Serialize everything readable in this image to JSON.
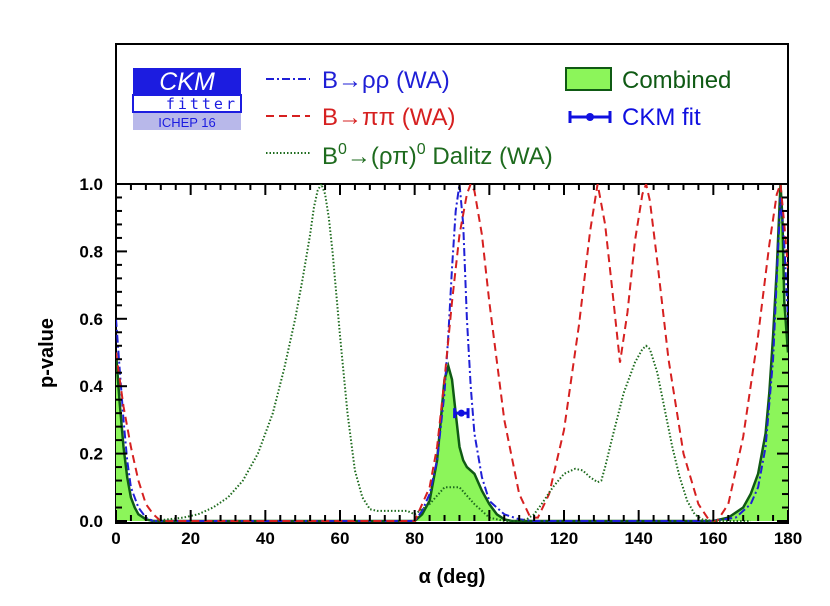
{
  "colors": {
    "rhorho": "#1f1fd6",
    "pipi": "#d62020",
    "dalitz": "#1e6b1e",
    "combined_fill": "#8cf55a",
    "combined_line": "#0f5a14",
    "ckm_fit": "#1010e0",
    "logo_blue": "#1c1ce0",
    "logo_light": "#b8b8ea"
  },
  "logo": {
    "line1": "CKM",
    "line2": "fitter",
    "badge": "ICHEP 16"
  },
  "legend": {
    "rhorho": "B→ρρ (WA)",
    "pipi": "B→ππ (WA)",
    "dalitz_a": "B",
    "dalitz_sup1": "0",
    "dalitz_b": "→(ρπ)",
    "dalitz_sup2": "0",
    "dalitz_c": " Dalitz (WA)",
    "combined": "Combined",
    "ckmfit": "CKM fit"
  },
  "chart_data": {
    "type": "line",
    "xlabel": "α  (deg)",
    "ylabel": "p-value",
    "xlim": [
      0,
      180
    ],
    "ylim": [
      0,
      1
    ],
    "xticks": [
      "0",
      "20",
      "40",
      "60",
      "80",
      "100",
      "120",
      "140",
      "160",
      "180"
    ],
    "yticks": [
      "0.0",
      "0.2",
      "0.4",
      "0.6",
      "0.8",
      "1.0"
    ],
    "series": [
      {
        "name": "B→ρρ (WA)",
        "key": "rhorho",
        "style": "dashdot",
        "x": [
          0,
          1,
          2,
          3,
          4,
          6,
          8,
          10,
          80,
          82,
          84,
          86,
          88,
          89,
          90,
          91,
          92,
          93,
          94,
          95,
          96,
          98,
          100,
          104,
          108,
          112,
          160,
          166,
          170,
          172,
          174,
          176,
          177,
          178,
          179,
          180
        ],
        "y": [
          0.6,
          0.45,
          0.3,
          0.18,
          0.1,
          0.04,
          0.01,
          0.0,
          0.0,
          0.03,
          0.08,
          0.18,
          0.38,
          0.55,
          0.75,
          0.92,
          1.0,
          0.88,
          0.6,
          0.4,
          0.26,
          0.13,
          0.06,
          0.02,
          0.005,
          0.0,
          0.0,
          0.01,
          0.05,
          0.1,
          0.22,
          0.48,
          0.72,
          0.96,
          0.82,
          0.6
        ]
      },
      {
        "name": "B→ππ (WA)",
        "key": "pipi",
        "style": "dashed",
        "x": [
          0,
          2,
          4,
          6,
          8,
          10,
          12,
          80,
          84,
          86,
          88,
          90,
          92,
          94,
          95,
          96,
          98,
          100,
          104,
          108,
          111,
          113,
          116,
          120,
          124,
          127,
          129,
          131,
          133,
          135,
          137,
          139,
          141,
          142,
          143,
          145,
          148,
          152,
          156,
          159,
          161,
          164,
          168,
          172,
          175,
          177,
          178,
          179,
          180
        ],
        "y": [
          0.5,
          0.34,
          0.22,
          0.12,
          0.05,
          0.02,
          0.0,
          0.0,
          0.1,
          0.22,
          0.42,
          0.65,
          0.85,
          0.97,
          1.0,
          0.98,
          0.85,
          0.65,
          0.3,
          0.08,
          0.01,
          0.01,
          0.08,
          0.27,
          0.58,
          0.86,
          1.0,
          0.88,
          0.68,
          0.47,
          0.62,
          0.83,
          0.97,
          1.0,
          0.95,
          0.77,
          0.48,
          0.2,
          0.05,
          0.0,
          0.0,
          0.05,
          0.25,
          0.55,
          0.82,
          0.97,
          1.0,
          0.88,
          0.75
        ]
      },
      {
        "name": "B0→(ρπ)0 Dalitz (WA)",
        "key": "dalitz",
        "style": "dotted",
        "x": [
          10,
          14,
          18,
          22,
          26,
          30,
          34,
          38,
          42,
          45,
          48,
          50,
          52,
          53,
          54,
          55,
          56,
          57,
          58,
          60,
          62,
          64,
          66,
          68,
          70,
          78,
          80,
          84,
          88,
          92,
          96,
          100,
          104,
          108,
          110,
          112,
          114,
          117,
          120,
          123,
          125,
          127,
          129,
          130,
          131,
          133,
          136,
          139,
          141,
          142,
          143,
          145,
          147,
          149,
          151,
          153,
          155,
          157,
          160,
          165,
          170
        ],
        "y": [
          0.0,
          0.005,
          0.01,
          0.02,
          0.04,
          0.07,
          0.12,
          0.2,
          0.32,
          0.45,
          0.6,
          0.72,
          0.85,
          0.93,
          0.98,
          1.0,
          0.97,
          0.9,
          0.8,
          0.55,
          0.32,
          0.15,
          0.07,
          0.035,
          0.03,
          0.03,
          0.02,
          0.05,
          0.1,
          0.1,
          0.05,
          0.01,
          0.0,
          0.0,
          0.005,
          0.02,
          0.05,
          0.1,
          0.14,
          0.155,
          0.15,
          0.13,
          0.115,
          0.12,
          0.16,
          0.25,
          0.38,
          0.47,
          0.51,
          0.52,
          0.51,
          0.44,
          0.33,
          0.22,
          0.13,
          0.06,
          0.02,
          0.005,
          0.0,
          0.0,
          0.0
        ],
        "note": "x values between 70 and 78 bridge a short flat plateau"
      },
      {
        "name": "Combined",
        "key": "combined",
        "style": "filled",
        "x": [
          0,
          1,
          2,
          3,
          4,
          5,
          6,
          8,
          10,
          12,
          80,
          82,
          84,
          86,
          87,
          88,
          89,
          90,
          91,
          92,
          93,
          94,
          96,
          98,
          100,
          102,
          104,
          106,
          160,
          164,
          168,
          170,
          172,
          174,
          175,
          176,
          177,
          178,
          178.5,
          179,
          180
        ],
        "y": [
          0.5,
          0.35,
          0.22,
          0.13,
          0.07,
          0.04,
          0.02,
          0.005,
          0.0,
          0.0,
          0.0,
          0.02,
          0.06,
          0.18,
          0.3,
          0.42,
          0.46,
          0.42,
          0.32,
          0.22,
          0.18,
          0.16,
          0.14,
          0.09,
          0.05,
          0.02,
          0.005,
          0.0,
          0.0,
          0.01,
          0.04,
          0.08,
          0.14,
          0.26,
          0.38,
          0.55,
          0.75,
          1.0,
          0.9,
          0.65,
          0.5
        ]
      }
    ],
    "ckm_fit": {
      "x": 92.5,
      "xerr_low": 1.8,
      "xerr_high": 1.8,
      "y": 0.32,
      "label": "CKM fit"
    }
  }
}
